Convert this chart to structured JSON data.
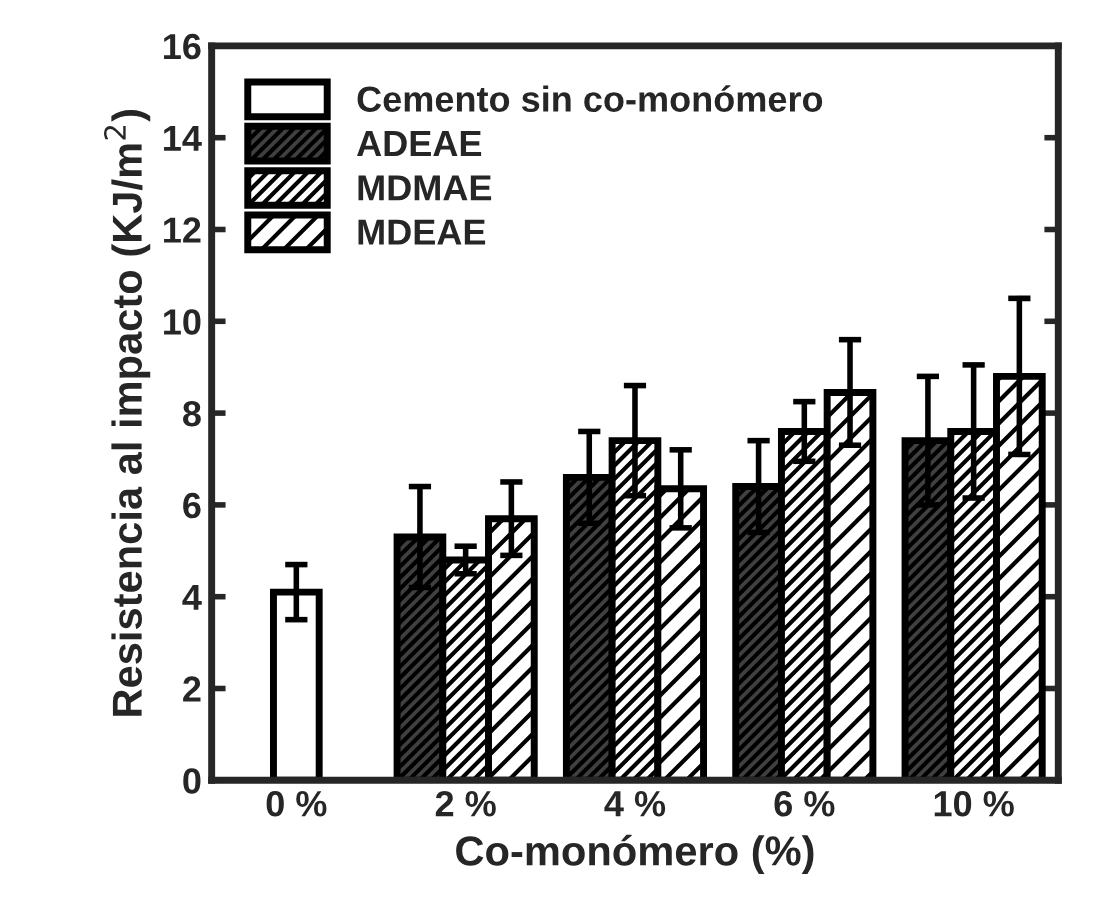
{
  "chart_data": {
    "type": "bar",
    "xlabel": "Co-monómero (%)",
    "ylabel": "Resistencia al impacto (KJ/m$^{2}$)",
    "categories": [
      "0 %",
      "2 %",
      "4 %",
      "6 %",
      "10 %"
    ],
    "series": [
      {
        "name": "Cemento sin co-monómero",
        "color": "#ffffff",
        "values": [
          4.1,
          null,
          null,
          null,
          null
        ],
        "errors": [
          0.6,
          null,
          null,
          null,
          null
        ]
      },
      {
        "name": "ADEAE",
        "color": "#000000",
        "values": [
          null,
          5.3,
          6.6,
          6.4,
          7.4
        ],
        "errors": [
          null,
          1.1,
          1.0,
          1.0,
          1.4
        ]
      },
      {
        "name": "MDMAE",
        "color": "#000000",
        "values": [
          null,
          4.8,
          7.4,
          7.6,
          7.6
        ],
        "errors": [
          null,
          0.3,
          1.2,
          0.65,
          1.45
        ]
      },
      {
        "name": "MDEAE",
        "color": "#000000",
        "values": [
          null,
          5.7,
          6.35,
          8.45,
          8.8
        ],
        "errors": [
          null,
          0.8,
          0.85,
          1.15,
          1.7
        ]
      }
    ],
    "ylim": [
      0,
      16
    ],
    "yticks": [
      0,
      2,
      4,
      6,
      8,
      10,
      12,
      14,
      16
    ],
    "grid": false,
    "legend": "top left"
  }
}
